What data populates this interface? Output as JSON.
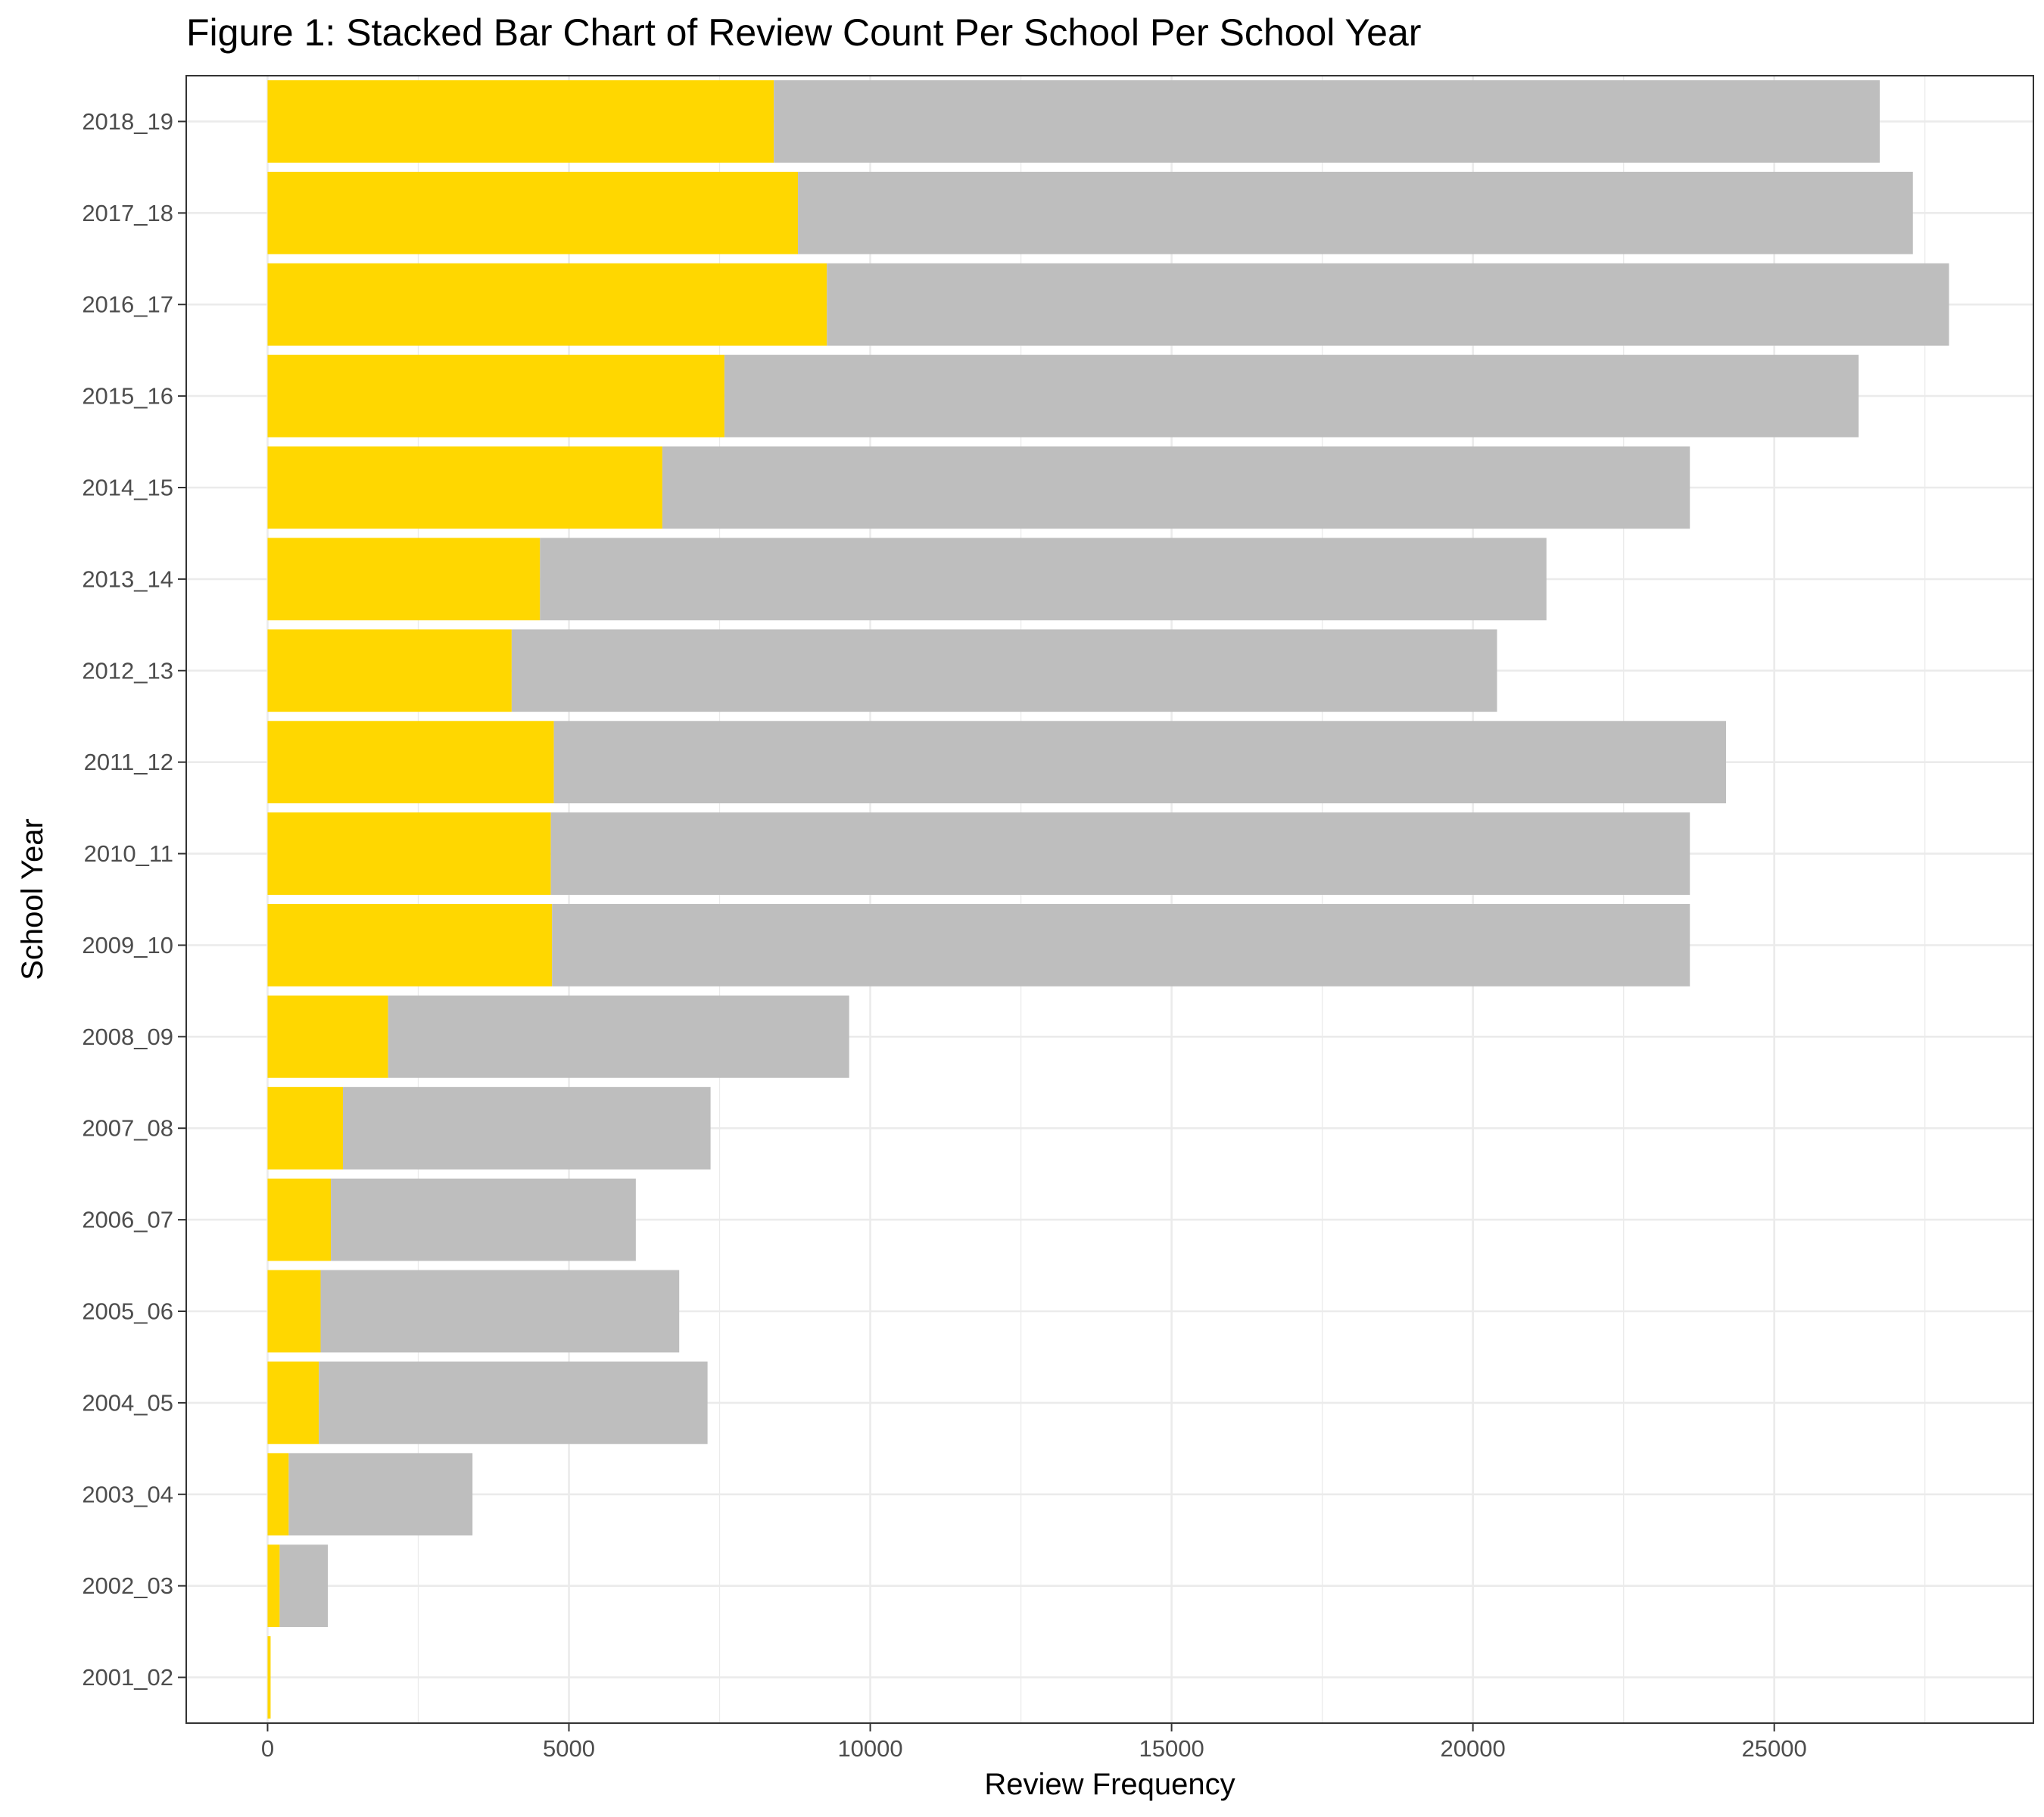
{
  "chart_data": {
    "type": "bar",
    "orientation": "horizontal",
    "stacked": true,
    "title": "Figure 1: Stacked Bar Chart of Review Count Per School Per School Year",
    "xlabel": "Review Frequency",
    "ylabel": "School Year",
    "xlim": [
      -1350,
      29300
    ],
    "x_ticks": [
      0,
      5000,
      10000,
      15000,
      20000,
      25000
    ],
    "x_tick_labels": [
      "0",
      "5000",
      "10000",
      "15000",
      "20000",
      "25000"
    ],
    "grid": true,
    "legend": "none",
    "categories": [
      "2001_02",
      "2002_03",
      "2003_04",
      "2004_05",
      "2005_06",
      "2006_07",
      "2007_08",
      "2008_09",
      "2009_10",
      "2010_11",
      "2011_12",
      "2012_13",
      "2013_14",
      "2014_15",
      "2015_16",
      "2016_17",
      "2017_18",
      "2018_19"
    ],
    "series": [
      {
        "color": "#FFD700",
        "values": [
          50,
          200,
          350,
          850,
          880,
          1050,
          1250,
          2000,
          4720,
          4700,
          4750,
          4050,
          4520,
          6550,
          7580,
          9280,
          8800,
          8400
        ]
      },
      {
        "color": "#BEBEBE",
        "values": [
          0,
          800,
          3050,
          6450,
          5950,
          5060,
          6100,
          7650,
          18880,
          18900,
          19450,
          16350,
          16700,
          17050,
          18820,
          18620,
          18500,
          18350
        ]
      }
    ]
  }
}
